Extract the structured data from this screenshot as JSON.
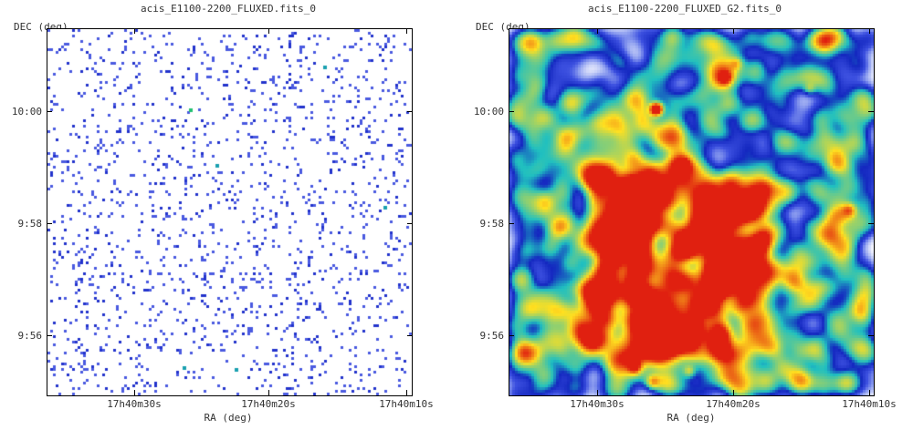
{
  "panels": [
    {
      "title": "acis_E1100-2200_FLUXED.fits_0",
      "ylabel": "DEC (deg)",
      "xlabel": "RA (deg)",
      "yticks": [
        "10:00",
        "9:58",
        "9:56"
      ],
      "xticks": [
        "17h40m30s",
        "17h40m20s",
        "17h40m10s"
      ],
      "rendering": "sparse-counts",
      "colormap": [
        "#ffffff",
        "#4a5ae0",
        "#2233cc",
        "#1aa0b0",
        "#22c070"
      ]
    },
    {
      "title": "acis_E1100-2200_FLUXED_G2.fits_0",
      "ylabel": "DEC (deg)",
      "xlabel": "RA (deg)",
      "yticks": [
        "10:00",
        "9:58",
        "9:56"
      ],
      "xticks": [
        "17h40m30s",
        "17h40m20s",
        "17h40m10s"
      ],
      "rendering": "gaussian-smoothed",
      "colormap": [
        "#ffffff",
        "#8fa0f0",
        "#3c50e0",
        "#1428c0",
        "#20c0c0",
        "#ffe020",
        "#e02010"
      ]
    }
  ]
}
